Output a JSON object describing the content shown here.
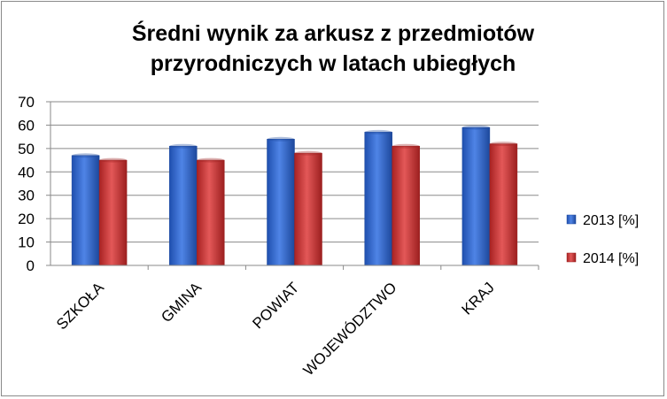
{
  "chart_data": {
    "type": "bar",
    "title_lines": [
      "Średni wynik za arkusz z przedmiotów",
      "przyrodniczych w latach ubiegłych"
    ],
    "xlabel": "",
    "ylabel": "",
    "categories": [
      "SZKOŁA",
      "GMINA",
      "POWIAT",
      "WOJEWÓDZTWO",
      "KRAJ"
    ],
    "series": [
      {
        "name": "2013 [%]",
        "color": "#3f6fd0",
        "values": [
          47,
          51,
          54,
          57,
          59
        ]
      },
      {
        "name": "2014 [%]",
        "color": "#d03a3a",
        "values": [
          45,
          45,
          48,
          51,
          52
        ]
      }
    ],
    "ylim": [
      0,
      70
    ],
    "yticks": [
      "0",
      "10",
      "20",
      "30",
      "40",
      "50",
      "60",
      "70"
    ],
    "grid": true,
    "legend_position": "right"
  }
}
